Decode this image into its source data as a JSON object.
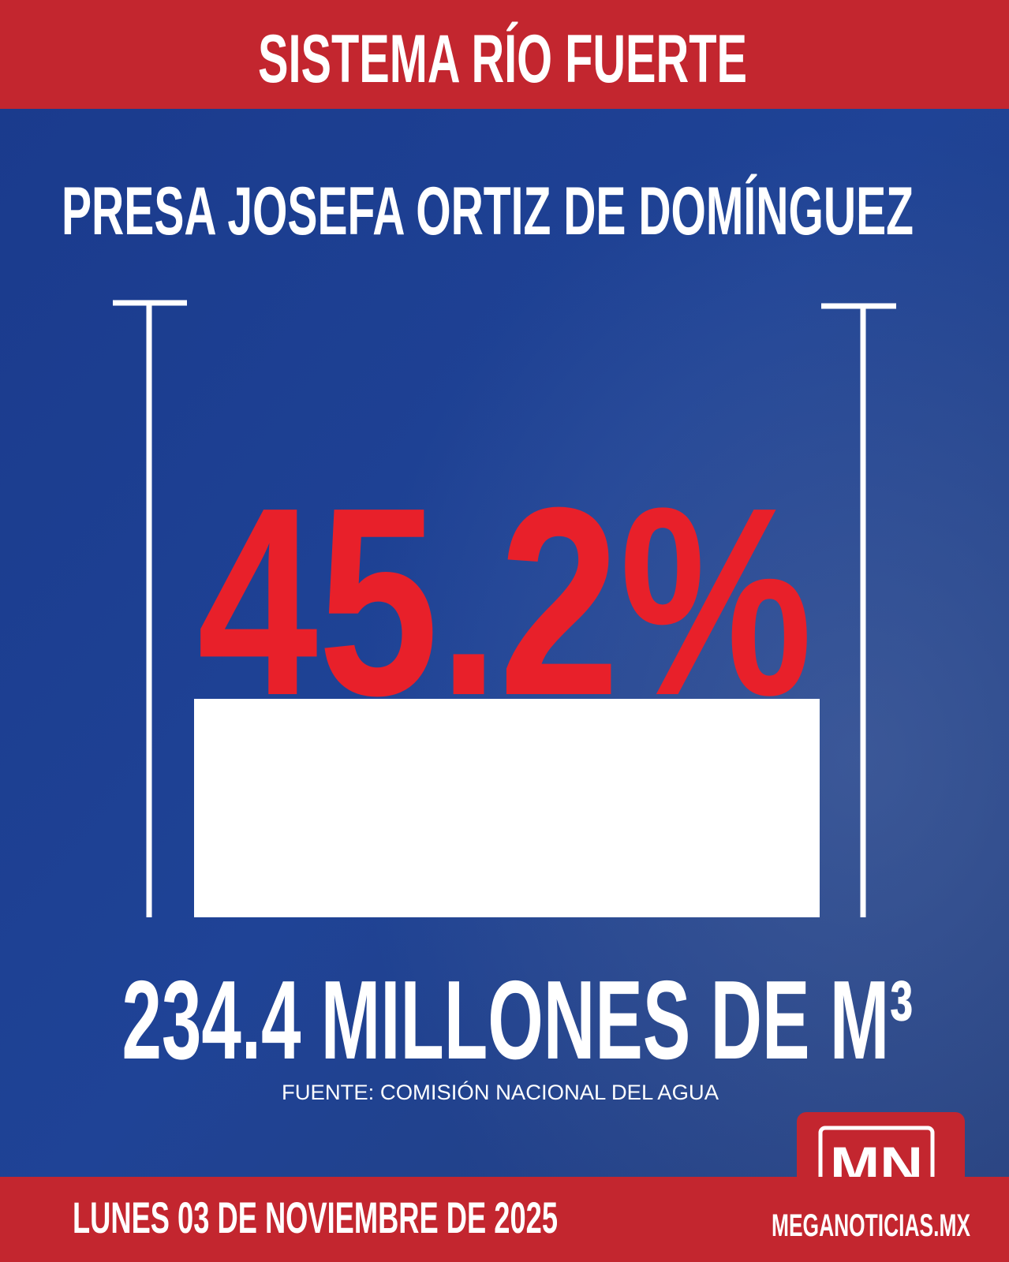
{
  "header": {
    "title": "SISTEMA RÍO FUERTE"
  },
  "dam": {
    "name": "PRESA JOSEFA ORTIZ DE DOMÍNGUEZ",
    "percentage": "45.2%",
    "volume": "234.4 MILLONES DE M³"
  },
  "source": "FUENTE: COMISIÓN NACIONAL DEL AGUA",
  "footer": {
    "date": "LUNES 03 DE NOVIEMBRE DE 2025",
    "logo": "MN",
    "site": "MEGANOTICIAS.MX"
  }
}
